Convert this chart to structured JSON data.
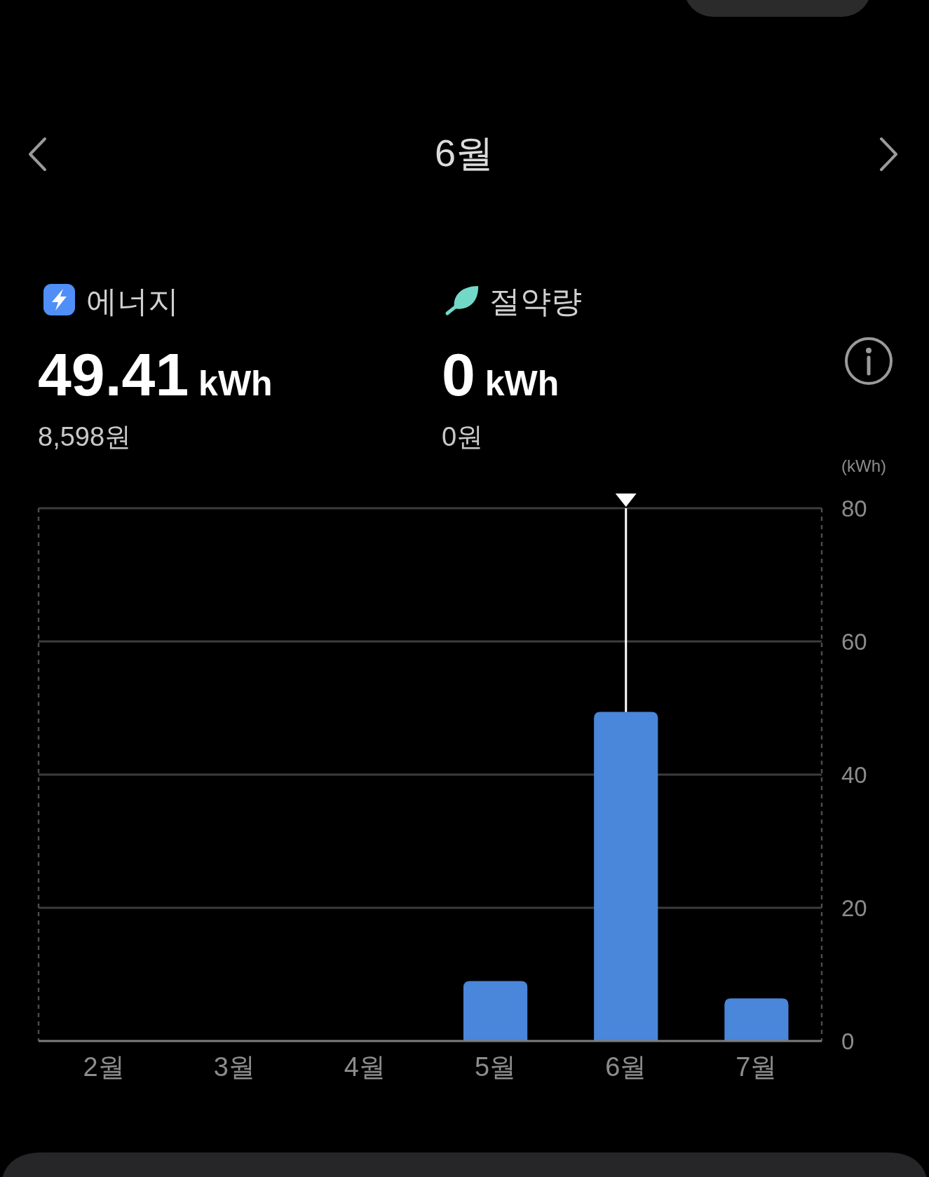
{
  "chart_data": {
    "type": "bar",
    "title": "6월",
    "ylabel": "(kWh)",
    "categories": [
      "2월",
      "3월",
      "4월",
      "5월",
      "6월",
      "7월"
    ],
    "values": [
      null,
      null,
      null,
      9,
      49.41,
      6.4
    ],
    "color": "#4a86d9",
    "ylim": [
      0,
      80
    ],
    "yticks": [
      0,
      20,
      40,
      60,
      80
    ],
    "grid": "y",
    "ref_lines": [
      {
        "axis": "x",
        "value": "6월",
        "color": "#ffffff"
      }
    ],
    "annotations": [
      "에너지",
      "49.41 kWh",
      "8,598원",
      "절약량",
      "0 kWh",
      "0원"
    ]
  }
}
